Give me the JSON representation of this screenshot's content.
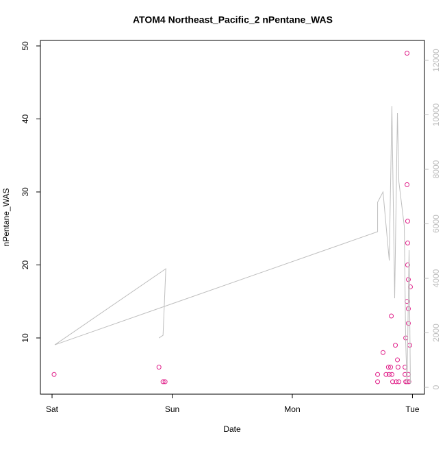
{
  "chart_data": {
    "type": "scatter",
    "title": "ATOM4 Northeast_Pacific_2 nPentane_WAS",
    "xlabel": "Date",
    "ylabel": "nPentane_WAS",
    "xlim": [
      -0.097,
      3.1
    ],
    "xticks": [
      {
        "value": 0,
        "label": "Sat"
      },
      {
        "value": 1,
        "label": "Sun"
      },
      {
        "value": 2,
        "label": "Mon"
      },
      {
        "value": 3,
        "label": "Tue"
      }
    ],
    "ylim": [
      2.3,
      50.75
    ],
    "yticks": [
      10,
      20,
      30,
      40,
      50
    ],
    "y2lim": [
      -250,
      12730
    ],
    "y2ticks": [
      0,
      2000,
      4000,
      6000,
      8000,
      10000,
      12000
    ],
    "y2color": "#bebebe",
    "series": [
      {
        "type": "scatter",
        "color": "#e0218a",
        "x": [
          0.017,
          0.89,
          0.924,
          0.941,
          2.71,
          2.71,
          2.755,
          2.78,
          2.8,
          2.806,
          2.818,
          2.824,
          2.829,
          2.835,
          2.858,
          2.864,
          2.875,
          2.88,
          2.887,
          2.938,
          2.938,
          2.944,
          2.944,
          2.955,
          2.955,
          2.955,
          2.955,
          2.96,
          2.96,
          2.96,
          2.966,
          2.966,
          2.966,
          2.966,
          2.97,
          2.977,
          2.983
        ],
        "values": [
          5,
          6,
          4,
          4,
          5,
          4,
          8,
          5,
          6,
          5,
          6,
          13,
          5,
          4,
          9,
          4,
          7,
          6,
          4,
          6,
          5,
          10,
          4,
          15,
          49,
          31,
          4,
          26,
          23,
          20,
          18,
          14,
          12,
          5,
          4,
          9,
          17
        ]
      },
      {
        "type": "line",
        "axis": "y2",
        "color": "#bebebe",
        "x": [
          0.89,
          0.924,
          0.947,
          0.023,
          2.71,
          2.71,
          2.755,
          2.807,
          2.829,
          2.852,
          2.875,
          2.887,
          2.932,
          2.944,
          2.955,
          2.972,
          2.983
        ],
        "values": [
          1811,
          1912,
          4352,
          1560,
          5711,
          6792,
          7170,
          4654,
          10314,
          3270,
          10063,
          7547,
          5912,
          1635,
          126,
          5031,
          126
        ]
      }
    ]
  }
}
